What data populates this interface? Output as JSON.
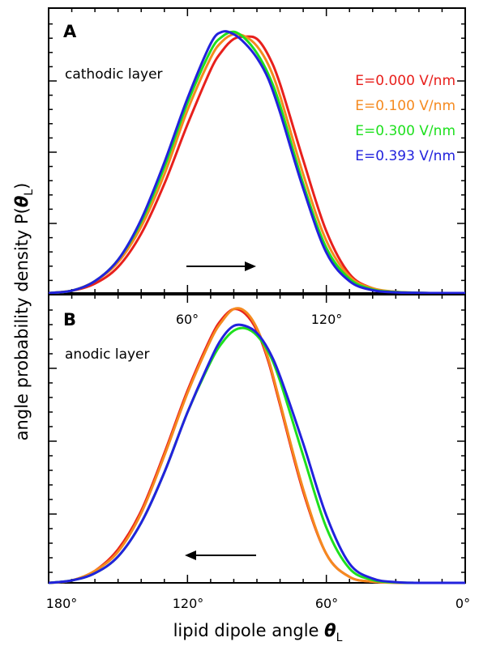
{
  "figure": {
    "ylabel": {
      "main": "angle probability density P(",
      "theta": "θ",
      "sub": "L",
      "close": ")"
    },
    "xlabel": {
      "main": "lipid dipole angle ",
      "theta": "θ",
      "sub": "L"
    },
    "legend": [
      {
        "label": "E=0.000 V/nm",
        "color": "#e8201c"
      },
      {
        "label": "E=0.100 V/nm",
        "color": "#f58a1f"
      },
      {
        "label": "E=0.300 V/nm",
        "color": "#1ee01e"
      },
      {
        "label": "E=0.393 V/nm",
        "color": "#2222dd"
      }
    ]
  },
  "chart_data": [
    {
      "type": "line",
      "panel": "A",
      "annotation": "cathodic layer",
      "xlabel": "",
      "ylabel": "angle probability density P(θL)",
      "x_range": [
        0,
        180
      ],
      "x_direction": "increasing",
      "xticks": [
        60,
        120
      ],
      "xtick_labels": [
        "60°",
        "120°"
      ],
      "y_range": [
        0,
        1.2
      ],
      "arrow": "right",
      "series": [
        {
          "name": "E=0.000 V/nm",
          "color": "#e8201c",
          "x": [
            0,
            10,
            20,
            30,
            40,
            50,
            60,
            70,
            75,
            80,
            85,
            90,
            95,
            100,
            110,
            120,
            130,
            140,
            150,
            160,
            170,
            180
          ],
          "y": [
            0,
            0.01,
            0.04,
            0.11,
            0.25,
            0.46,
            0.71,
            0.94,
            1.02,
            1.07,
            1.08,
            1.07,
            1.0,
            0.88,
            0.56,
            0.26,
            0.08,
            0.02,
            0.005,
            0.001,
            0,
            0
          ]
        },
        {
          "name": "E=0.100 V/nm",
          "color": "#f58a1f",
          "x": [
            0,
            10,
            20,
            30,
            40,
            50,
            60,
            70,
            75,
            80,
            85,
            90,
            95,
            100,
            110,
            120,
            130,
            140,
            150,
            160,
            170,
            180
          ],
          "y": [
            0,
            0.01,
            0.05,
            0.13,
            0.28,
            0.5,
            0.77,
            0.99,
            1.06,
            1.09,
            1.08,
            1.04,
            0.96,
            0.83,
            0.5,
            0.22,
            0.07,
            0.02,
            0.005,
            0.001,
            0,
            0
          ]
        },
        {
          "name": "E=0.300 V/nm",
          "color": "#1ee01e",
          "x": [
            0,
            10,
            20,
            30,
            40,
            50,
            60,
            70,
            75,
            80,
            85,
            90,
            95,
            100,
            110,
            120,
            130,
            140,
            150,
            160,
            170,
            180
          ],
          "y": [
            0,
            0.01,
            0.05,
            0.14,
            0.3,
            0.53,
            0.8,
            1.02,
            1.08,
            1.1,
            1.07,
            1.01,
            0.92,
            0.79,
            0.46,
            0.19,
            0.06,
            0.015,
            0.004,
            0.001,
            0,
            0
          ]
        },
        {
          "name": "E=0.393 V/nm",
          "color": "#2222dd",
          "x": [
            0,
            10,
            20,
            30,
            40,
            50,
            60,
            70,
            75,
            80,
            85,
            90,
            95,
            100,
            110,
            120,
            130,
            140,
            150,
            160,
            170,
            180
          ],
          "y": [
            0,
            0.01,
            0.05,
            0.14,
            0.31,
            0.55,
            0.82,
            1.05,
            1.1,
            1.09,
            1.05,
            0.99,
            0.9,
            0.76,
            0.44,
            0.17,
            0.05,
            0.012,
            0.003,
            0.001,
            0,
            0
          ]
        }
      ]
    },
    {
      "type": "line",
      "panel": "B",
      "annotation": "anodic layer",
      "xlabel": "lipid dipole angle θL",
      "ylabel": "angle probability density P(θL)",
      "x_range": [
        180,
        0
      ],
      "x_direction": "decreasing",
      "xticks": [
        180,
        120,
        60,
        0
      ],
      "xtick_labels": [
        "180°",
        "120°",
        "60°",
        "0°"
      ],
      "y_range": [
        0,
        1.2
      ],
      "arrow": "left",
      "series": [
        {
          "name": "E=0.000 V/nm",
          "color": "#e8201c",
          "x": [
            180,
            170,
            160,
            150,
            140,
            130,
            120,
            110,
            105,
            100,
            95,
            90,
            85,
            80,
            70,
            60,
            50,
            40,
            30,
            20,
            10,
            0
          ],
          "y": [
            0,
            0.01,
            0.05,
            0.14,
            0.3,
            0.54,
            0.8,
            1.02,
            1.1,
            1.14,
            1.12,
            1.05,
            0.92,
            0.74,
            0.38,
            0.12,
            0.025,
            0.005,
            0.001,
            0,
            0,
            0
          ]
        },
        {
          "name": "E=0.100 V/nm",
          "color": "#f58a1f",
          "x": [
            180,
            170,
            160,
            150,
            140,
            130,
            120,
            110,
            105,
            100,
            95,
            90,
            85,
            80,
            70,
            60,
            50,
            40,
            30,
            20,
            10,
            0
          ],
          "y": [
            0,
            0.01,
            0.05,
            0.13,
            0.29,
            0.53,
            0.79,
            1.01,
            1.09,
            1.14,
            1.13,
            1.06,
            0.93,
            0.75,
            0.39,
            0.12,
            0.025,
            0.005,
            0.001,
            0,
            0,
            0
          ]
        },
        {
          "name": "E=0.300 V/nm",
          "color": "#1ee01e",
          "x": [
            180,
            170,
            160,
            150,
            140,
            130,
            120,
            110,
            105,
            100,
            95,
            90,
            85,
            80,
            70,
            60,
            50,
            40,
            30,
            20,
            10,
            0
          ],
          "y": [
            0,
            0.01,
            0.04,
            0.11,
            0.25,
            0.46,
            0.71,
            0.92,
            1.0,
            1.05,
            1.06,
            1.03,
            0.96,
            0.84,
            0.53,
            0.23,
            0.06,
            0.012,
            0.002,
            0,
            0,
            0
          ]
        },
        {
          "name": "E=0.393 V/nm",
          "color": "#2222dd",
          "x": [
            180,
            170,
            160,
            150,
            140,
            130,
            120,
            110,
            105,
            100,
            95,
            90,
            85,
            80,
            70,
            60,
            50,
            40,
            30,
            20,
            10,
            0
          ],
          "y": [
            0,
            0.01,
            0.04,
            0.11,
            0.25,
            0.46,
            0.71,
            0.93,
            1.02,
            1.07,
            1.07,
            1.04,
            0.97,
            0.86,
            0.58,
            0.28,
            0.08,
            0.018,
            0.003,
            0,
            0,
            0
          ]
        }
      ]
    }
  ]
}
